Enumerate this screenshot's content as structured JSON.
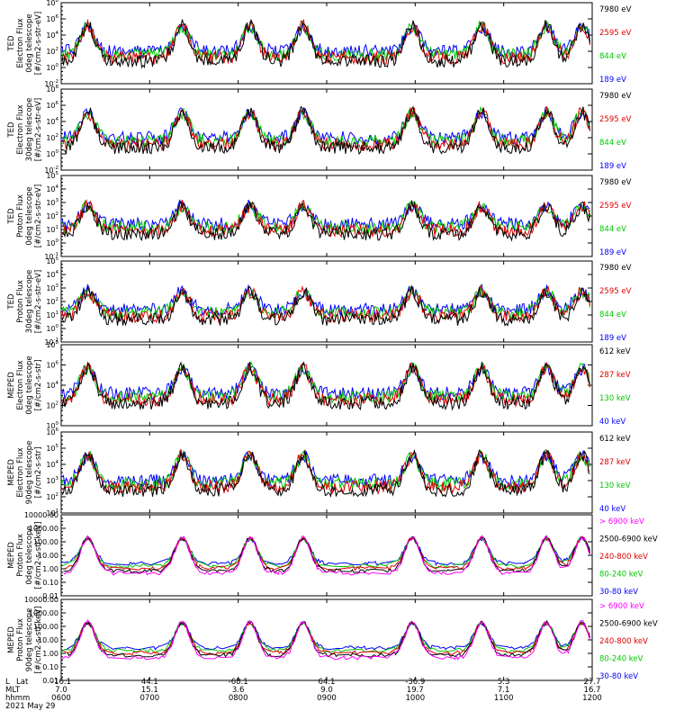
{
  "figure": {
    "date_label": "2021 May 29",
    "row_labels": [
      "L",
      "MLT",
      "hhmm"
    ]
  },
  "chart_data": {
    "type": "line",
    "x_axis": {
      "ticks": [
        {
          "L": "Lat",
          "lat": "-16.1",
          "mlt": "7.0",
          "hhmm": "0600"
        },
        {
          "L": "",
          "lat": "44.1",
          "mlt": "15.1",
          "hhmm": "0700"
        },
        {
          "L": "",
          "lat": "-68.1",
          "mlt": "3.6",
          "hhmm": "0800"
        },
        {
          "L": "",
          "lat": "64.1",
          "mlt": "9.0",
          "hhmm": "0900"
        },
        {
          "L": "",
          "lat": "-36.9",
          "mlt": "19.7",
          "hhmm": "1000"
        },
        {
          "L": "",
          "lat": "5.3",
          "mlt": "7.1",
          "hhmm": "1100"
        },
        {
          "L": "",
          "lat": "27.7",
          "mlt": "16.7",
          "hhmm": "1200"
        }
      ]
    },
    "panels": [
      {
        "ylabel": [
          "TED",
          "Electron Flux",
          "0deg telescope",
          "[#/cm2-s-str-eV]"
        ],
        "scale": "log",
        "ticks": [
          "10^-2",
          "10^0",
          "10^2",
          "10^4",
          "10^6",
          "10^8"
        ],
        "legend": [
          {
            "text": "7980 eV",
            "color": "#000000"
          },
          {
            "text": "2595 eV",
            "color": "#e00000"
          },
          {
            "text": "844 eV",
            "color": "#00c800"
          },
          {
            "text": "189 eV",
            "color": "#0000ff"
          }
        ]
      },
      {
        "ylabel": [
          "TED",
          "Electron Flux",
          "30deg telescope",
          "[#/cm2-s-str-eV]"
        ],
        "scale": "log",
        "ticks": [
          "10^-2",
          "10^0",
          "10^2",
          "10^4",
          "10^6",
          "10^8"
        ],
        "legend": [
          {
            "text": "7980 eV",
            "color": "#000000"
          },
          {
            "text": "2595 eV",
            "color": "#e00000"
          },
          {
            "text": "844 eV",
            "color": "#00c800"
          },
          {
            "text": "189 eV",
            "color": "#0000ff"
          }
        ]
      },
      {
        "ylabel": [
          "TED",
          "Proton Flux",
          "0deg telescope",
          "[#/cm2-s-str-eV]"
        ],
        "scale": "log",
        "ticks": [
          "10^-1",
          "10^0",
          "10^1",
          "10^2",
          "10^3",
          "10^4",
          "10^5"
        ],
        "legend": [
          {
            "text": "7980 eV",
            "color": "#000000"
          },
          {
            "text": "2595 eV",
            "color": "#e00000"
          },
          {
            "text": "844 eV",
            "color": "#00c800"
          },
          {
            "text": "189 eV",
            "color": "#0000ff"
          }
        ]
      },
      {
        "ylabel": [
          "TED",
          "Proton Flux",
          "30deg telescope",
          "[#/cm2-s-str-eV]"
        ],
        "scale": "log",
        "ticks": [
          "10^-1",
          "10^0",
          "10^1",
          "10^2",
          "10^3",
          "10^4",
          "10^5"
        ],
        "legend": [
          {
            "text": "7980 eV",
            "color": "#000000"
          },
          {
            "text": "2595 eV",
            "color": "#e00000"
          },
          {
            "text": "844 eV",
            "color": "#00c800"
          },
          {
            "text": "189 eV",
            "color": "#0000ff"
          }
        ]
      },
      {
        "ylabel": [
          "MEPED",
          "Electron Flux",
          "0deg telescope",
          "[#/cm2-s-str]"
        ],
        "scale": "log",
        "ticks": [
          "10^0",
          "10^2",
          "10^4",
          "10^6",
          "10^8"
        ],
        "legend": [
          {
            "text": "612 keV",
            "color": "#000000"
          },
          {
            "text": "287 keV",
            "color": "#e00000"
          },
          {
            "text": "130 keV",
            "color": "#00c800"
          },
          {
            "text": "40 keV",
            "color": "#0000ff"
          }
        ]
      },
      {
        "ylabel": [
          "MEPED",
          "Electron Flux",
          "90deg telescope",
          "[#/cm2-s-str]"
        ],
        "scale": "log",
        "ticks": [
          "10^1",
          "10^2",
          "10^3",
          "10^4",
          "10^5",
          "10^6"
        ],
        "legend": [
          {
            "text": "612 keV",
            "color": "#000000"
          },
          {
            "text": "287 keV",
            "color": "#e00000"
          },
          {
            "text": "130 keV",
            "color": "#00c800"
          },
          {
            "text": "40 keV",
            "color": "#0000ff"
          }
        ]
      },
      {
        "ylabel": [
          "MEPED",
          "Proton Flux",
          "0deg telescope",
          "[#/cm2-s-str-keV]"
        ],
        "scale": "log",
        "ticks": [
          "0.01",
          "0.10",
          "1.00",
          "10.00",
          "100.00",
          "1000.00",
          "10000.00"
        ],
        "legend": [
          {
            "text": "> 6900 keV",
            "color": "#ff00ff"
          },
          {
            "text": "2500-6900 keV",
            "color": "#000000"
          },
          {
            "text": "240-800 keV",
            "color": "#e00000"
          },
          {
            "text": "80-240 keV",
            "color": "#00c800"
          },
          {
            "text": "30-80 keV",
            "color": "#0000ff"
          }
        ]
      },
      {
        "ylabel": [
          "MEPED",
          "Proton Flux",
          "90deg telescope",
          "[#/cm2-s-str-keV]"
        ],
        "scale": "log",
        "ticks": [
          "0.01",
          "0.10",
          "1.00",
          "10.00",
          "100.00",
          "1000.00",
          "10000.00"
        ],
        "legend": [
          {
            "text": "> 6900 keV",
            "color": "#ff00ff"
          },
          {
            "text": "2500-6900 keV",
            "color": "#000000"
          },
          {
            "text": "240-800 keV",
            "color": "#e00000"
          },
          {
            "text": "80-240 keV",
            "color": "#00c800"
          },
          {
            "text": "30-80 keV",
            "color": "#0000ff"
          }
        ]
      }
    ],
    "pass_times_hhmm": [
      "0618",
      "0722",
      "0808",
      "0844",
      "0958",
      "1045",
      "1129",
      "1153"
    ]
  }
}
